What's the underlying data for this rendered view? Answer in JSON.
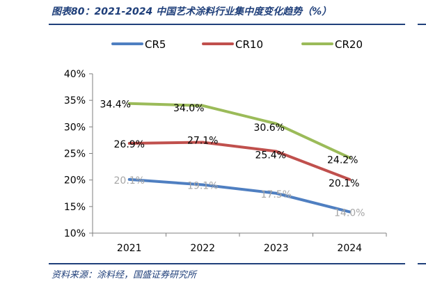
{
  "header": {
    "title": "图表80：2021-2024 中国艺术涂料行业集中度变化趋势（%）"
  },
  "footer": {
    "source": "资料来源：涂料经，国盛证券研究所"
  },
  "chart_data": {
    "type": "line",
    "categories": [
      "2021",
      "2022",
      "2023",
      "2024"
    ],
    "series": [
      {
        "name": "CR5",
        "color": "#4f7fc1",
        "label_color": "#a6a6a6",
        "values": [
          20.1,
          19.1,
          17.5,
          14.0
        ],
        "labels": [
          "20.1%",
          "19.1%",
          "17.5%",
          "14.0%"
        ]
      },
      {
        "name": "CR10",
        "color": "#c0504d",
        "label_color": "#000000",
        "values": [
          26.9,
          27.1,
          25.4,
          20.1
        ],
        "labels": [
          "26.9%",
          "27.1%",
          "25.4%",
          "20.1%"
        ]
      },
      {
        "name": "CR20",
        "color": "#9bbb59",
        "label_color": "#000000",
        "values": [
          34.4,
          34.0,
          30.6,
          24.2
        ],
        "labels": [
          "34.4%",
          "34.0%",
          "30.6%",
          "24.2%"
        ]
      }
    ],
    "y_ticks": [
      "10%",
      "15%",
      "20%",
      "25%",
      "30%",
      "35%",
      "40%"
    ],
    "ylim": [
      10,
      40
    ],
    "grid": false,
    "legend_position": "top"
  }
}
